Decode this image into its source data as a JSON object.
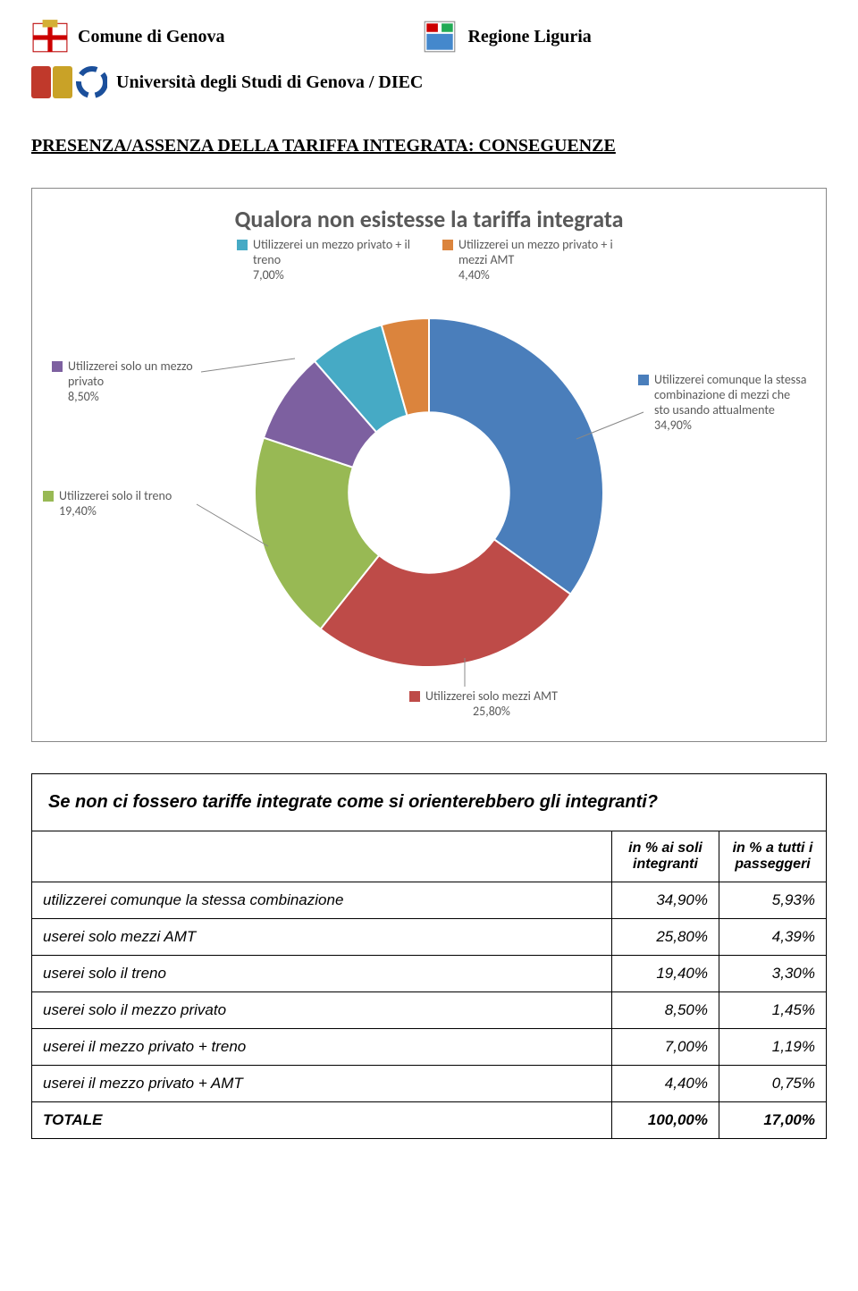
{
  "header": {
    "left_label": "Comune di Genova",
    "right_label": "Regione Liguria",
    "sub_label": "Università degli Studi di Genova / DIEC"
  },
  "section_title": "PRESENZA/ASSENZA DELLA TARIFFA INTEGRATA: CONSEGUENZE",
  "chart": {
    "type": "donut",
    "title": "Qualora non esistesse la tariffa integrata",
    "background_color": "#ffffff",
    "border_color": "#888888",
    "label_text_color": "#595959",
    "label_fontsize": 14,
    "title_fontsize": 26,
    "inner_radius_ratio": 0.46,
    "slices": [
      {
        "label": "Utilizzerei comunque la stessa combinazione di mezzi che sto usando attualmente",
        "value": 34.9,
        "value_text": "34,90%",
        "color": "#4a7ebb"
      },
      {
        "label": "Utilizzerei solo mezzi AMT",
        "value": 25.8,
        "value_text": "25,80%",
        "color": "#be4b48"
      },
      {
        "label": "Utilizzerei solo il treno",
        "value": 19.4,
        "value_text": "19,40%",
        "color": "#98b954"
      },
      {
        "label": "Utilizzerei solo un mezzo privato",
        "value": 8.5,
        "value_text": "8,50%",
        "color": "#7d60a0"
      },
      {
        "label": "Utilizzerei un mezzo privato + il treno",
        "value": 7.0,
        "value_text": "7,00%",
        "color": "#46aac5"
      },
      {
        "label": "Utilizzerei un mezzo privato + i mezzi AMT",
        "value": 4.4,
        "value_text": "4,40%",
        "color": "#db843d"
      }
    ]
  },
  "table": {
    "question": "Se non ci fossero tariffe integrate come si orienterebbero gli integranti?",
    "col1_header": "in % ai soli integranti",
    "col2_header": "in % a tutti i passeggeri",
    "rows": [
      {
        "label": "utilizzerei comunque la stessa combinazione",
        "v1": "34,90%",
        "v2": "5,93%"
      },
      {
        "label": "userei solo mezzi AMT",
        "v1": "25,80%",
        "v2": "4,39%"
      },
      {
        "label": "userei solo il treno",
        "v1": "19,40%",
        "v2": "3,30%"
      },
      {
        "label": "userei solo il mezzo privato",
        "v1": "8,50%",
        "v2": "1,45%"
      },
      {
        "label": "userei il mezzo privato + treno",
        "v1": "7,00%",
        "v2": "1,19%"
      },
      {
        "label": "userei il mezzo privato + AMT",
        "v1": "4,40%",
        "v2": "0,75%"
      }
    ],
    "total": {
      "label": "TOTALE",
      "v1": "100,00%",
      "v2": "17,00%"
    }
  }
}
